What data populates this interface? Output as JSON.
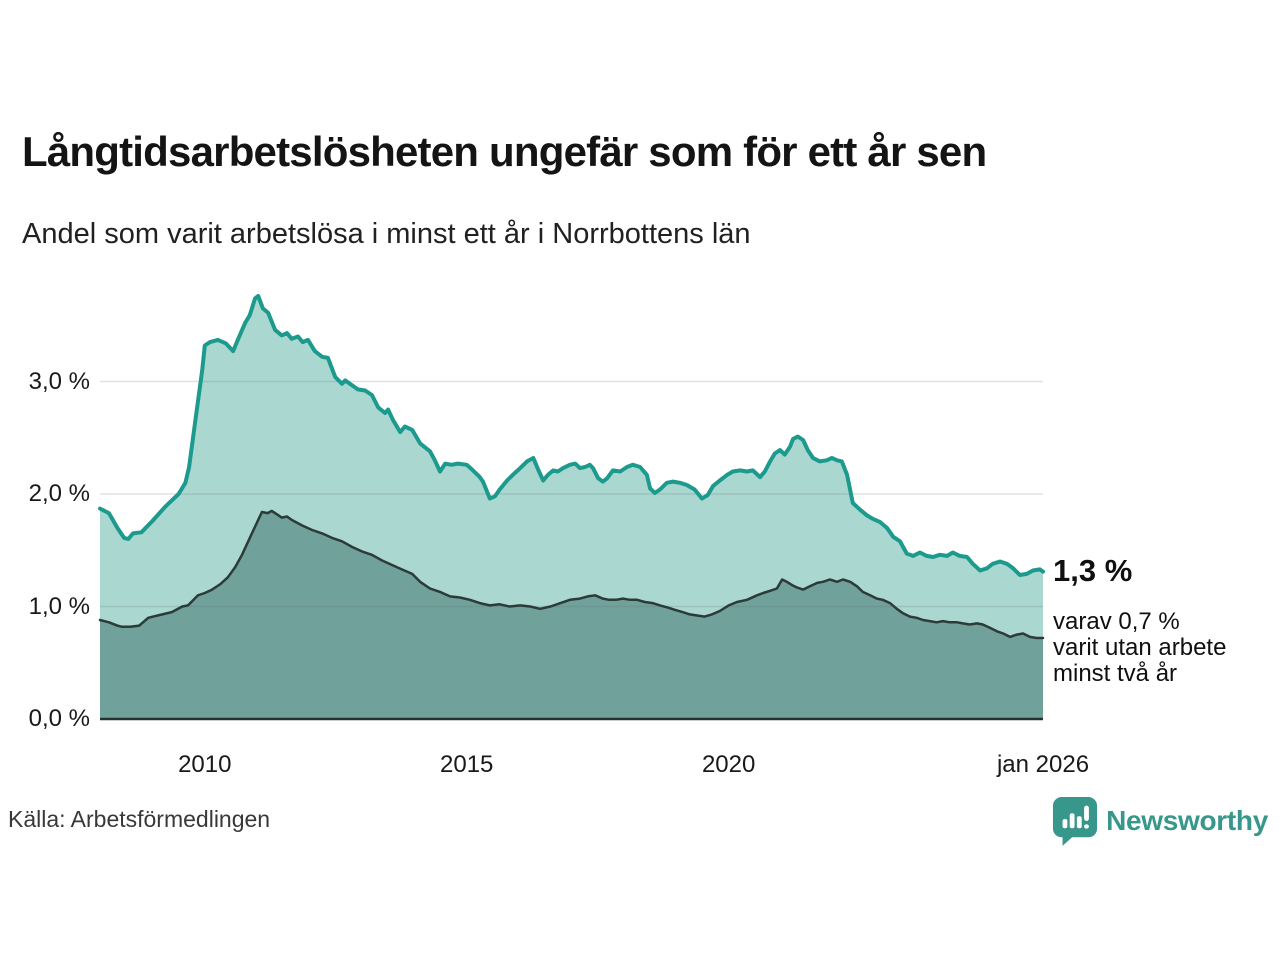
{
  "header": {
    "title": "Långtidsarbetslösheten ungefär som för ett år sen",
    "subtitle": "Andel som varit arbetslösa i minst ett år i Norrbottens län"
  },
  "annotation": {
    "value_label": "1,3 %",
    "note_lines": [
      "varav 0,7 %",
      "varit utan arbete",
      "minst två år"
    ]
  },
  "footer": {
    "source": "Källa: Arbetsförmedlingen",
    "brand": "Newsworthy"
  },
  "colors": {
    "teal_line": "#1b9a8d",
    "teal_fill": "#abd7d1",
    "dark_line": "#2c3b38",
    "dark_fill": "#71a19b",
    "axis": "#243330",
    "grid": "rgba(90,100,98,0.18)",
    "brand_teal": "#38978b"
  },
  "chart_data": {
    "type": "area",
    "title": "Långtidsarbetslösheten ungefär som för ett år sen",
    "subtitle": "Andel som varit arbetslösa i minst ett år i Norrbottens län",
    "x_unit": "decimal_year",
    "x_range": [
      2008,
      2026
    ],
    "ylim": [
      0,
      3.85
    ],
    "grid": true,
    "y_ticks": [
      {
        "label": "0,0 %",
        "value": 0
      },
      {
        "label": "1,0 %",
        "value": 1
      },
      {
        "label": "2,0 %",
        "value": 2
      },
      {
        "label": "3,0 %",
        "value": 3
      }
    ],
    "x_ticks": [
      {
        "label": "2010",
        "year": 2010
      },
      {
        "label": "2015",
        "year": 2015
      },
      {
        "label": "2020",
        "year": 2020
      },
      {
        "label": "jan 2026",
        "year": 2026
      }
    ],
    "series": [
      {
        "name": "arbetslösa minst ett år",
        "end_label": "1,3 %",
        "points": [
          [
            2008.0,
            1.87
          ],
          [
            2008.17,
            1.83
          ],
          [
            2008.33,
            1.7
          ],
          [
            2008.46,
            1.61
          ],
          [
            2008.54,
            1.6
          ],
          [
            2008.63,
            1.65
          ],
          [
            2008.79,
            1.66
          ],
          [
            2009.0,
            1.76
          ],
          [
            2009.25,
            1.89
          ],
          [
            2009.5,
            2.0
          ],
          [
            2009.63,
            2.1
          ],
          [
            2009.7,
            2.24
          ],
          [
            2009.82,
            2.65
          ],
          [
            2009.95,
            3.1
          ],
          [
            2010.0,
            3.32
          ],
          [
            2010.1,
            3.35
          ],
          [
            2010.25,
            3.37
          ],
          [
            2010.4,
            3.34
          ],
          [
            2010.54,
            3.27
          ],
          [
            2010.63,
            3.37
          ],
          [
            2010.77,
            3.52
          ],
          [
            2010.86,
            3.59
          ],
          [
            2010.96,
            3.74
          ],
          [
            2011.02,
            3.76
          ],
          [
            2011.11,
            3.65
          ],
          [
            2011.21,
            3.61
          ],
          [
            2011.34,
            3.46
          ],
          [
            2011.47,
            3.41
          ],
          [
            2011.57,
            3.43
          ],
          [
            2011.66,
            3.38
          ],
          [
            2011.78,
            3.4
          ],
          [
            2011.87,
            3.35
          ],
          [
            2011.97,
            3.37
          ],
          [
            2012.1,
            3.27
          ],
          [
            2012.24,
            3.22
          ],
          [
            2012.35,
            3.21
          ],
          [
            2012.49,
            3.04
          ],
          [
            2012.62,
            2.98
          ],
          [
            2012.68,
            3.01
          ],
          [
            2012.77,
            2.98
          ],
          [
            2012.92,
            2.93
          ],
          [
            2013.06,
            2.92
          ],
          [
            2013.19,
            2.88
          ],
          [
            2013.31,
            2.77
          ],
          [
            2013.44,
            2.72
          ],
          [
            2013.5,
            2.75
          ],
          [
            2013.59,
            2.66
          ],
          [
            2013.73,
            2.55
          ],
          [
            2013.82,
            2.6
          ],
          [
            2013.96,
            2.57
          ],
          [
            2014.11,
            2.45
          ],
          [
            2014.3,
            2.38
          ],
          [
            2014.39,
            2.3
          ],
          [
            2014.49,
            2.2
          ],
          [
            2014.59,
            2.27
          ],
          [
            2014.71,
            2.26
          ],
          [
            2014.83,
            2.27
          ],
          [
            2015.0,
            2.26
          ],
          [
            2015.12,
            2.21
          ],
          [
            2015.25,
            2.15
          ],
          [
            2015.31,
            2.11
          ],
          [
            2015.44,
            1.96
          ],
          [
            2015.54,
            1.98
          ],
          [
            2015.63,
            2.04
          ],
          [
            2015.77,
            2.12
          ],
          [
            2015.88,
            2.17
          ],
          [
            2016.02,
            2.23
          ],
          [
            2016.15,
            2.29
          ],
          [
            2016.27,
            2.32
          ],
          [
            2016.37,
            2.21
          ],
          [
            2016.46,
            2.12
          ],
          [
            2016.55,
            2.17
          ],
          [
            2016.65,
            2.21
          ],
          [
            2016.74,
            2.2
          ],
          [
            2016.84,
            2.23
          ],
          [
            2016.97,
            2.26
          ],
          [
            2017.07,
            2.27
          ],
          [
            2017.16,
            2.23
          ],
          [
            2017.26,
            2.24
          ],
          [
            2017.35,
            2.26
          ],
          [
            2017.41,
            2.23
          ],
          [
            2017.51,
            2.14
          ],
          [
            2017.6,
            2.11
          ],
          [
            2017.68,
            2.14
          ],
          [
            2017.79,
            2.21
          ],
          [
            2017.93,
            2.2
          ],
          [
            2018.06,
            2.24
          ],
          [
            2018.17,
            2.26
          ],
          [
            2018.31,
            2.24
          ],
          [
            2018.44,
            2.17
          ],
          [
            2018.5,
            2.05
          ],
          [
            2018.59,
            2.01
          ],
          [
            2018.69,
            2.04
          ],
          [
            2018.82,
            2.1
          ],
          [
            2018.94,
            2.11
          ],
          [
            2019.07,
            2.1
          ],
          [
            2019.2,
            2.08
          ],
          [
            2019.35,
            2.04
          ],
          [
            2019.49,
            1.96
          ],
          [
            2019.6,
            1.99
          ],
          [
            2019.7,
            2.07
          ],
          [
            2019.83,
            2.12
          ],
          [
            2019.97,
            2.17
          ],
          [
            2020.08,
            2.2
          ],
          [
            2020.22,
            2.21
          ],
          [
            2020.35,
            2.2
          ],
          [
            2020.46,
            2.21
          ],
          [
            2020.6,
            2.15
          ],
          [
            2020.69,
            2.2
          ],
          [
            2020.79,
            2.29
          ],
          [
            2020.88,
            2.36
          ],
          [
            2020.98,
            2.39
          ],
          [
            2021.07,
            2.35
          ],
          [
            2021.17,
            2.42
          ],
          [
            2021.23,
            2.49
          ],
          [
            2021.32,
            2.51
          ],
          [
            2021.42,
            2.48
          ],
          [
            2021.51,
            2.39
          ],
          [
            2021.61,
            2.32
          ],
          [
            2021.74,
            2.29
          ],
          [
            2021.87,
            2.3
          ],
          [
            2021.97,
            2.32
          ],
          [
            2022.07,
            2.3
          ],
          [
            2022.16,
            2.29
          ],
          [
            2022.26,
            2.17
          ],
          [
            2022.37,
            1.92
          ],
          [
            2022.51,
            1.86
          ],
          [
            2022.64,
            1.81
          ],
          [
            2022.75,
            1.78
          ],
          [
            2022.89,
            1.75
          ],
          [
            2023.02,
            1.7
          ],
          [
            2023.14,
            1.62
          ],
          [
            2023.27,
            1.58
          ],
          [
            2023.4,
            1.47
          ],
          [
            2023.52,
            1.45
          ],
          [
            2023.65,
            1.48
          ],
          [
            2023.78,
            1.45
          ],
          [
            2023.9,
            1.44
          ],
          [
            2024.03,
            1.46
          ],
          [
            2024.17,
            1.45
          ],
          [
            2024.28,
            1.48
          ],
          [
            2024.41,
            1.45
          ],
          [
            2024.55,
            1.44
          ],
          [
            2024.66,
            1.38
          ],
          [
            2024.8,
            1.32
          ],
          [
            2024.93,
            1.34
          ],
          [
            2025.04,
            1.38
          ],
          [
            2025.18,
            1.4
          ],
          [
            2025.31,
            1.38
          ],
          [
            2025.43,
            1.34
          ],
          [
            2025.56,
            1.28
          ],
          [
            2025.69,
            1.29
          ],
          [
            2025.81,
            1.32
          ],
          [
            2025.94,
            1.33
          ],
          [
            2026.0,
            1.31
          ]
        ]
      },
      {
        "name": "arbetslösa minst två år",
        "end_label": "0,7 %",
        "points": [
          [
            2008.0,
            0.88
          ],
          [
            2008.17,
            0.86
          ],
          [
            2008.33,
            0.83
          ],
          [
            2008.42,
            0.82
          ],
          [
            2008.58,
            0.82
          ],
          [
            2008.75,
            0.83
          ],
          [
            2008.92,
            0.9
          ],
          [
            2009.1,
            0.92
          ],
          [
            2009.37,
            0.95
          ],
          [
            2009.57,
            1.0
          ],
          [
            2009.68,
            1.01
          ],
          [
            2009.87,
            1.1
          ],
          [
            2010.0,
            1.12
          ],
          [
            2010.14,
            1.15
          ],
          [
            2010.3,
            1.2
          ],
          [
            2010.44,
            1.26
          ],
          [
            2010.58,
            1.35
          ],
          [
            2010.71,
            1.46
          ],
          [
            2010.9,
            1.65
          ],
          [
            2011.09,
            1.84
          ],
          [
            2011.2,
            1.83
          ],
          [
            2011.28,
            1.85
          ],
          [
            2011.47,
            1.79
          ],
          [
            2011.57,
            1.8
          ],
          [
            2011.66,
            1.77
          ],
          [
            2011.86,
            1.72
          ],
          [
            2012.05,
            1.68
          ],
          [
            2012.24,
            1.65
          ],
          [
            2012.43,
            1.61
          ],
          [
            2012.62,
            1.58
          ],
          [
            2012.81,
            1.53
          ],
          [
            2013.0,
            1.49
          ],
          [
            2013.19,
            1.46
          ],
          [
            2013.38,
            1.41
          ],
          [
            2013.57,
            1.37
          ],
          [
            2013.76,
            1.33
          ],
          [
            2013.96,
            1.29
          ],
          [
            2014.11,
            1.22
          ],
          [
            2014.3,
            1.16
          ],
          [
            2014.49,
            1.13
          ],
          [
            2014.68,
            1.09
          ],
          [
            2014.87,
            1.08
          ],
          [
            2015.06,
            1.06
          ],
          [
            2015.25,
            1.03
          ],
          [
            2015.44,
            1.01
          ],
          [
            2015.63,
            1.02
          ],
          [
            2015.82,
            1.0
          ],
          [
            2016.02,
            1.01
          ],
          [
            2016.21,
            1.0
          ],
          [
            2016.4,
            0.98
          ],
          [
            2016.6,
            1.0
          ],
          [
            2016.79,
            1.03
          ],
          [
            2016.97,
            1.06
          ],
          [
            2017.16,
            1.07
          ],
          [
            2017.31,
            1.09
          ],
          [
            2017.45,
            1.1
          ],
          [
            2017.6,
            1.07
          ],
          [
            2017.72,
            1.06
          ],
          [
            2017.85,
            1.06
          ],
          [
            2017.98,
            1.07
          ],
          [
            2018.12,
            1.06
          ],
          [
            2018.25,
            1.06
          ],
          [
            2018.4,
            1.04
          ],
          [
            2018.55,
            1.03
          ],
          [
            2018.69,
            1.01
          ],
          [
            2018.84,
            0.99
          ],
          [
            2018.98,
            0.97
          ],
          [
            2019.12,
            0.95
          ],
          [
            2019.26,
            0.93
          ],
          [
            2019.4,
            0.92
          ],
          [
            2019.54,
            0.91
          ],
          [
            2019.68,
            0.93
          ],
          [
            2019.83,
            0.96
          ],
          [
            2020.0,
            1.01
          ],
          [
            2020.16,
            1.04
          ],
          [
            2020.35,
            1.06
          ],
          [
            2020.54,
            1.1
          ],
          [
            2020.66,
            1.12
          ],
          [
            2020.79,
            1.14
          ],
          [
            2020.92,
            1.16
          ],
          [
            2021.02,
            1.24
          ],
          [
            2021.11,
            1.22
          ],
          [
            2021.21,
            1.19
          ],
          [
            2021.3,
            1.17
          ],
          [
            2021.42,
            1.15
          ],
          [
            2021.55,
            1.18
          ],
          [
            2021.69,
            1.21
          ],
          [
            2021.8,
            1.22
          ],
          [
            2021.93,
            1.24
          ],
          [
            2022.07,
            1.22
          ],
          [
            2022.18,
            1.24
          ],
          [
            2022.32,
            1.22
          ],
          [
            2022.45,
            1.18
          ],
          [
            2022.56,
            1.13
          ],
          [
            2022.7,
            1.1
          ],
          [
            2022.83,
            1.07
          ],
          [
            2022.94,
            1.06
          ],
          [
            2023.08,
            1.03
          ],
          [
            2023.21,
            0.98
          ],
          [
            2023.33,
            0.94
          ],
          [
            2023.46,
            0.91
          ],
          [
            2023.59,
            0.9
          ],
          [
            2023.71,
            0.88
          ],
          [
            2023.84,
            0.87
          ],
          [
            2023.97,
            0.86
          ],
          [
            2024.09,
            0.87
          ],
          [
            2024.22,
            0.86
          ],
          [
            2024.36,
            0.86
          ],
          [
            2024.47,
            0.85
          ],
          [
            2024.6,
            0.84
          ],
          [
            2024.74,
            0.85
          ],
          [
            2024.85,
            0.84
          ],
          [
            2024.99,
            0.81
          ],
          [
            2025.12,
            0.78
          ],
          [
            2025.24,
            0.76
          ],
          [
            2025.37,
            0.73
          ],
          [
            2025.5,
            0.75
          ],
          [
            2025.62,
            0.76
          ],
          [
            2025.75,
            0.73
          ],
          [
            2025.88,
            0.72
          ],
          [
            2026.0,
            0.72
          ]
        ]
      }
    ]
  }
}
